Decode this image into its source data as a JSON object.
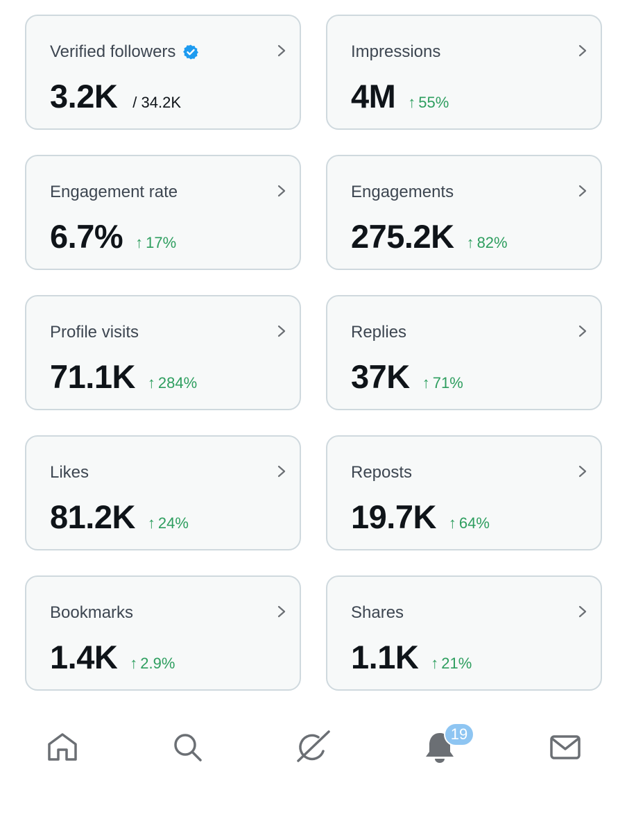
{
  "cards": [
    {
      "label": "Verified followers",
      "value": "3.2K",
      "total": "/ 34.2K",
      "verified_icon": "verified-badge-icon"
    },
    {
      "label": "Impressions",
      "value": "4M",
      "delta": "55%"
    },
    {
      "label": "Engagement rate",
      "value": "6.7%",
      "delta": "17%"
    },
    {
      "label": "Engagements",
      "value": "275.2K",
      "delta": "82%"
    },
    {
      "label": "Profile visits",
      "value": "71.1K",
      "delta": "284%"
    },
    {
      "label": "Replies",
      "value": "37K",
      "delta": "71%"
    },
    {
      "label": "Likes",
      "value": "81.2K",
      "delta": "24%"
    },
    {
      "label": "Reposts",
      "value": "19.7K",
      "delta": "64%"
    },
    {
      "label": "Bookmarks",
      "value": "1.4K",
      "delta": "2.9%"
    },
    {
      "label": "Shares",
      "value": "1.1K",
      "delta": "21%"
    }
  ],
  "delta_arrow": "↑",
  "colors": {
    "positive": "#2e9e5f",
    "verified": "#1d9bf0",
    "card_border": "#cfd9de",
    "card_bg": "#f7f9f9",
    "icon_gray": "#6b6f74",
    "badge": "#8ec5f2"
  },
  "tabbar": {
    "items": [
      {
        "name": "home",
        "icon": "home-icon"
      },
      {
        "name": "search",
        "icon": "search-icon"
      },
      {
        "name": "grok",
        "icon": "grok-icon"
      },
      {
        "name": "notifications",
        "icon": "bell-icon"
      },
      {
        "name": "messages",
        "icon": "envelope-icon"
      }
    ],
    "notification_count": "19"
  }
}
